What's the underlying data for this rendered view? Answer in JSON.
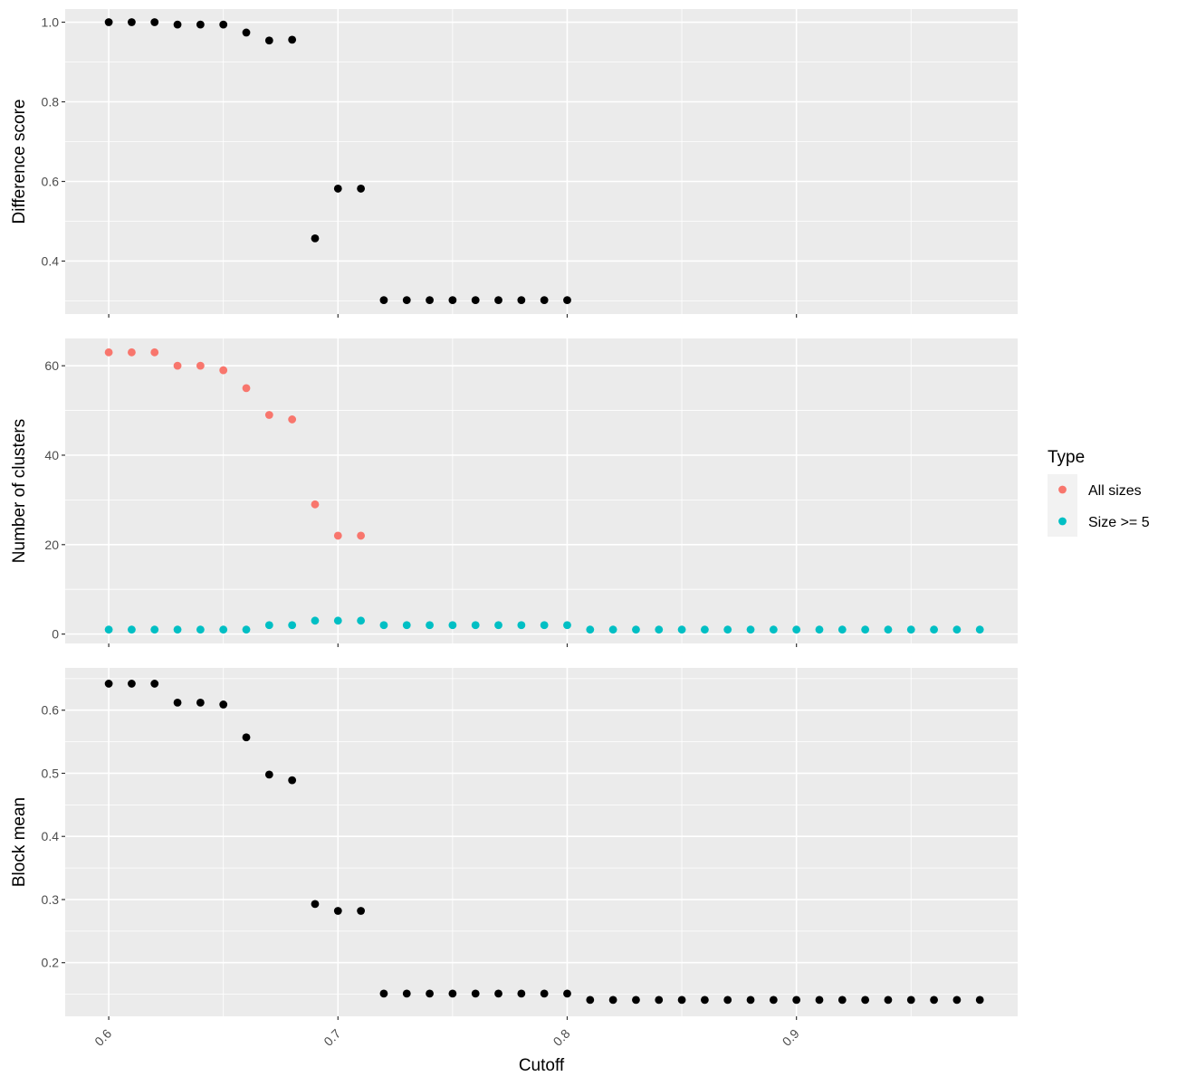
{
  "chart_data": {
    "type": "scatter",
    "xlabel": "Cutoff",
    "xlim": [
      0.581,
      0.9965
    ],
    "xticks": [
      0.6,
      0.7,
      0.8,
      0.9
    ],
    "xtick_labels": [
      "0.6",
      "0.7",
      "0.8",
      "0.9"
    ],
    "panels": [
      {
        "ylabel": "Difference score",
        "ylim": [
          0.267,
          1.033
        ],
        "yticks": [
          0.4,
          0.6,
          0.8,
          1.0
        ],
        "ytick_labels": [
          "0.4",
          "0.6",
          "0.8",
          "1.0"
        ],
        "series": [
          {
            "color": "#000000",
            "x": [
              0.6,
              0.61,
              0.62,
              0.63,
              0.64,
              0.65,
              0.66,
              0.67,
              0.68,
              0.69,
              0.7,
              0.71,
              0.72,
              0.73,
              0.74,
              0.75,
              0.76,
              0.77,
              0.78,
              0.79,
              0.8
            ],
            "y": [
              1.0,
              1.0,
              1.0,
              0.994,
              0.994,
              0.994,
              0.974,
              0.954,
              0.956,
              0.457,
              0.582,
              0.582,
              0.302,
              0.302,
              0.302,
              0.302,
              0.302,
              0.302,
              0.302,
              0.302,
              0.302
            ]
          }
        ]
      },
      {
        "ylabel": "Number of clusters",
        "ylim": [
          -2.1,
          66.1
        ],
        "yticks": [
          0,
          20,
          40,
          60
        ],
        "ytick_labels": [
          "0",
          "20",
          "40",
          "60"
        ],
        "series": [
          {
            "name": "All sizes",
            "color": "#f8766d",
            "x": [
              0.6,
              0.61,
              0.62,
              0.63,
              0.64,
              0.65,
              0.66,
              0.67,
              0.68,
              0.69,
              0.7,
              0.71
            ],
            "y": [
              63,
              63,
              63,
              60,
              60,
              59,
              55,
              49,
              48,
              29,
              22,
              22
            ]
          },
          {
            "name": "Size >= 5",
            "color": "#00bfc4",
            "x": [
              0.6,
              0.61,
              0.62,
              0.63,
              0.64,
              0.65,
              0.66,
              0.67,
              0.68,
              0.69,
              0.7,
              0.71,
              0.72,
              0.73,
              0.74,
              0.75,
              0.76,
              0.77,
              0.78,
              0.79,
              0.8,
              0.81,
              0.82,
              0.83,
              0.84,
              0.85,
              0.86,
              0.87,
              0.88,
              0.89,
              0.9,
              0.91,
              0.92,
              0.93,
              0.94,
              0.95,
              0.96,
              0.97,
              0.98
            ],
            "y": [
              1,
              1,
              1,
              1,
              1,
              1,
              1,
              2,
              2,
              3,
              3,
              3,
              2,
              2,
              2,
              2,
              2,
              2,
              2,
              2,
              2,
              1,
              1,
              1,
              1,
              1,
              1,
              1,
              1,
              1,
              1,
              1,
              1,
              1,
              1,
              1,
              1,
              1,
              1
            ]
          }
        ]
      },
      {
        "ylabel": "Block mean",
        "ylim": [
          0.115,
          0.667
        ],
        "yticks": [
          0.2,
          0.3,
          0.4,
          0.5,
          0.6
        ],
        "ytick_labels": [
          "0.2",
          "0.3",
          "0.4",
          "0.5",
          "0.6"
        ],
        "series": [
          {
            "color": "#000000",
            "x": [
              0.6,
              0.61,
              0.62,
              0.63,
              0.64,
              0.65,
              0.66,
              0.67,
              0.68,
              0.69,
              0.7,
              0.71,
              0.72,
              0.73,
              0.74,
              0.75,
              0.76,
              0.77,
              0.78,
              0.79,
              0.8,
              0.81,
              0.82,
              0.83,
              0.84,
              0.85,
              0.86,
              0.87,
              0.88,
              0.89,
              0.9,
              0.91,
              0.92,
              0.93,
              0.94,
              0.95,
              0.96,
              0.97,
              0.98
            ],
            "y": [
              0.642,
              0.642,
              0.642,
              0.612,
              0.612,
              0.609,
              0.557,
              0.498,
              0.489,
              0.293,
              0.282,
              0.282,
              0.151,
              0.151,
              0.151,
              0.151,
              0.151,
              0.151,
              0.151,
              0.151,
              0.151,
              0.141,
              0.141,
              0.141,
              0.141,
              0.141,
              0.141,
              0.141,
              0.141,
              0.141,
              0.141,
              0.141,
              0.141,
              0.141,
              0.141,
              0.141,
              0.141,
              0.141,
              0.141
            ]
          }
        ]
      }
    ],
    "legend": {
      "title": "Type",
      "position": "right",
      "items": [
        {
          "label": "All sizes",
          "color": "#f8766d"
        },
        {
          "label": "Size >= 5",
          "color": "#00bfc4"
        }
      ]
    },
    "grid": true
  }
}
